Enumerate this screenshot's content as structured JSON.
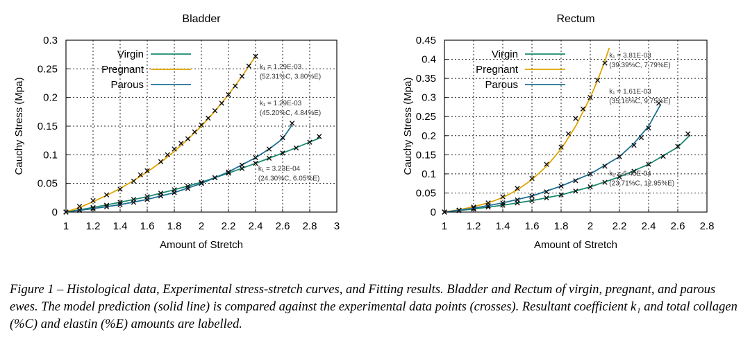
{
  "colors": {
    "virgin": "#1a8a6e",
    "pregnant": "#e0a400",
    "parous": "#1f6f94",
    "markers": "#111111"
  },
  "legend": [
    "Virgin",
    "Pregnant",
    "Parous"
  ],
  "chart_data": [
    {
      "type": "line",
      "title": "Bladder",
      "xlabel": "Amount of Stretch",
      "ylabel": "Cauchy Stress (Mpa)",
      "xlim": [
        1,
        3
      ],
      "ylim": [
        0,
        0.3
      ],
      "xticks": [
        "1",
        "1.2",
        "1.4",
        "1.6",
        "1.8",
        "2",
        "2.2",
        "2.4",
        "2.6",
        "2.8",
        "3"
      ],
      "yticks": [
        "0",
        "0.05",
        "0.1",
        "0.15",
        "0.2",
        "0.25",
        "0.3"
      ],
      "grid": true,
      "legend_position": "top-left",
      "series": [
        {
          "name": "Virgin",
          "fit": {
            "x": [
              1.0,
              1.2,
              1.4,
              1.6,
              1.8,
              2.0,
              2.2,
              2.4,
              2.6,
              2.8,
              2.88
            ],
            "y": [
              0.0,
              0.008,
              0.017,
              0.027,
              0.039,
              0.052,
              0.068,
              0.085,
              0.103,
              0.122,
              0.13
            ]
          },
          "data": {
            "x": [
              1.0,
              1.1,
              1.2,
              1.3,
              1.4,
              1.5,
              1.6,
              1.7,
              1.8,
              1.9,
              2.0,
              2.1,
              2.2,
              2.3,
              2.4,
              2.5,
              2.6,
              2.7,
              2.8,
              2.87
            ],
            "y": [
              0.0,
              0.004,
              0.008,
              0.012,
              0.017,
              0.022,
              0.027,
              0.033,
              0.039,
              0.045,
              0.052,
              0.06,
              0.068,
              0.076,
              0.085,
              0.094,
              0.103,
              0.112,
              0.122,
              0.132
            ]
          }
        },
        {
          "name": "Pregnant",
          "fit": {
            "x": [
              1.0,
              1.1,
              1.2,
              1.3,
              1.4,
              1.5,
              1.6,
              1.7,
              1.8,
              1.9,
              2.0,
              2.1,
              2.2,
              2.3,
              2.4
            ],
            "y": [
              0.0,
              0.008,
              0.018,
              0.029,
              0.041,
              0.055,
              0.07,
              0.087,
              0.106,
              0.127,
              0.15,
              0.176,
              0.205,
              0.237,
              0.272
            ]
          },
          "data": {
            "x": [
              1.0,
              1.1,
              1.2,
              1.3,
              1.4,
              1.5,
              1.55,
              1.6,
              1.7,
              1.75,
              1.8,
              1.85,
              1.9,
              1.95,
              2.0,
              2.05,
              2.1,
              2.15,
              2.2,
              2.25,
              2.3,
              2.35,
              2.4
            ],
            "y": [
              0.0,
              0.01,
              0.02,
              0.03,
              0.04,
              0.054,
              0.065,
              0.072,
              0.088,
              0.1,
              0.11,
              0.12,
              0.128,
              0.14,
              0.152,
              0.164,
              0.177,
              0.19,
              0.205,
              0.22,
              0.237,
              0.255,
              0.272
            ]
          }
        },
        {
          "name": "Parous",
          "fit": {
            "x": [
              1.0,
              1.2,
              1.4,
              1.6,
              1.8,
              2.0,
              2.2,
              2.4,
              2.5,
              2.6,
              2.67
            ],
            "y": [
              0.0,
              0.006,
              0.013,
              0.022,
              0.034,
              0.05,
              0.07,
              0.095,
              0.11,
              0.128,
              0.152
            ]
          },
          "data": {
            "x": [
              1.0,
              1.1,
              1.2,
              1.3,
              1.4,
              1.5,
              1.6,
              1.7,
              1.8,
              1.9,
              2.0,
              2.1,
              2.2,
              2.3,
              2.4,
              2.5,
              2.6,
              2.67
            ],
            "y": [
              0.0,
              0.003,
              0.006,
              0.009,
              0.013,
              0.017,
              0.022,
              0.028,
              0.034,
              0.041,
              0.05,
              0.06,
              0.07,
              0.082,
              0.095,
              0.11,
              0.13,
              0.155
            ]
          }
        }
      ],
      "annotations": [
        {
          "line1": "k₁ = 1.29E-03",
          "line2": "(52.31%C, 3.80%E)",
          "x": 2.43,
          "y": 0.25
        },
        {
          "line1": "k₁ = 1.29E-03",
          "line2": "(45.20%C, 4.84%E)",
          "x": 2.43,
          "y": 0.186
        },
        {
          "line1": "k₁ = 3.23E-04",
          "line2": "(24.30%C, 6.05%E)",
          "x": 2.42,
          "y": 0.072
        }
      ]
    },
    {
      "type": "line",
      "title": "Rectum",
      "xlabel": "Amount of Stretch",
      "ylabel": "Cauchy Stress (Mpa)",
      "xlim": [
        1,
        2.8
      ],
      "ylim": [
        0,
        0.45
      ],
      "xticks": [
        "1",
        "1.2",
        "1.4",
        "1.6",
        "1.8",
        "2",
        "2.2",
        "2.4",
        "2.6",
        "2.8"
      ],
      "yticks": [
        "0",
        "0.05",
        "0.1",
        "0.15",
        "0.2",
        "0.25",
        "0.3",
        "0.35",
        "0.4",
        "0.45"
      ],
      "grid": true,
      "legend_position": "top-left",
      "series": [
        {
          "name": "Virgin",
          "fit": {
            "x": [
              1.0,
              1.2,
              1.4,
              1.6,
              1.8,
              2.0,
              2.2,
              2.4,
              2.6,
              2.68
            ],
            "y": [
              0.0,
              0.008,
              0.018,
              0.03,
              0.045,
              0.066,
              0.092,
              0.125,
              0.17,
              0.2
            ]
          },
          "data": {
            "x": [
              1.0,
              1.1,
              1.2,
              1.3,
              1.4,
              1.5,
              1.6,
              1.7,
              1.8,
              1.9,
              2.0,
              2.1,
              2.2,
              2.3,
              2.4,
              2.5,
              2.6,
              2.67
            ],
            "y": [
              0.0,
              0.004,
              0.008,
              0.013,
              0.018,
              0.024,
              0.03,
              0.037,
              0.045,
              0.055,
              0.066,
              0.078,
              0.092,
              0.107,
              0.125,
              0.146,
              0.172,
              0.205
            ]
          }
        },
        {
          "name": "Pregnant",
          "fit": {
            "x": [
              1.0,
              1.1,
              1.2,
              1.3,
              1.4,
              1.5,
              1.6,
              1.7,
              1.8,
              1.9,
              2.0,
              2.05,
              2.1,
              2.13
            ],
            "y": [
              0.0,
              0.006,
              0.014,
              0.024,
              0.038,
              0.058,
              0.085,
              0.12,
              0.165,
              0.225,
              0.3,
              0.345,
              0.395,
              0.43
            ]
          },
          "data": {
            "x": [
              1.0,
              1.1,
              1.2,
              1.3,
              1.4,
              1.5,
              1.6,
              1.7,
              1.8,
              1.85,
              1.9,
              1.95,
              2.0,
              2.05,
              2.1
            ],
            "y": [
              0.0,
              0.005,
              0.013,
              0.024,
              0.04,
              0.062,
              0.088,
              0.125,
              0.17,
              0.205,
              0.245,
              0.27,
              0.3,
              0.345,
              0.39
            ]
          }
        },
        {
          "name": "Parous",
          "fit": {
            "x": [
              1.0,
              1.2,
              1.4,
              1.6,
              1.8,
              2.0,
              2.2,
              2.3,
              2.4,
              2.48
            ],
            "y": [
              0.0,
              0.01,
              0.024,
              0.042,
              0.068,
              0.1,
              0.145,
              0.18,
              0.225,
              0.28
            ]
          },
          "data": {
            "x": [
              1.0,
              1.1,
              1.2,
              1.3,
              1.4,
              1.5,
              1.6,
              1.7,
              1.8,
              1.9,
              2.0,
              2.1,
              2.2,
              2.3,
              2.35,
              2.4,
              2.47
            ],
            "y": [
              0.0,
              0.005,
              0.01,
              0.017,
              0.024,
              0.032,
              0.042,
              0.053,
              0.068,
              0.082,
              0.1,
              0.12,
              0.145,
              0.175,
              0.195,
              0.22,
              0.285
            ]
          }
        }
      ],
      "annotations": [
        {
          "line1": "k₁ = 3.81E-03",
          "line2": "(39.39%C, 7.79%E)",
          "x": 2.13,
          "y": 0.405
        },
        {
          "line1": "k₁ = 1.61E-03",
          "line2": "(35.16%C, 9.75%E)",
          "x": 2.13,
          "y": 0.31
        },
        {
          "line1": "k₁ = 6.45E-04",
          "line2": "(23.71%C, 12.95%E)",
          "x": 2.13,
          "y": 0.095
        }
      ]
    }
  ],
  "caption": "Figure 1 – Histological data, Experimental stress-stretch curves, and Fitting results. Bladder and Rectum of virgin, pregnant, and parous ewes. The model prediction (solid line) is compared against the experimental data points (crosses). Resultant coefficient k₁ and total collagen (%C) and elastin (%E) amounts are labelled."
}
